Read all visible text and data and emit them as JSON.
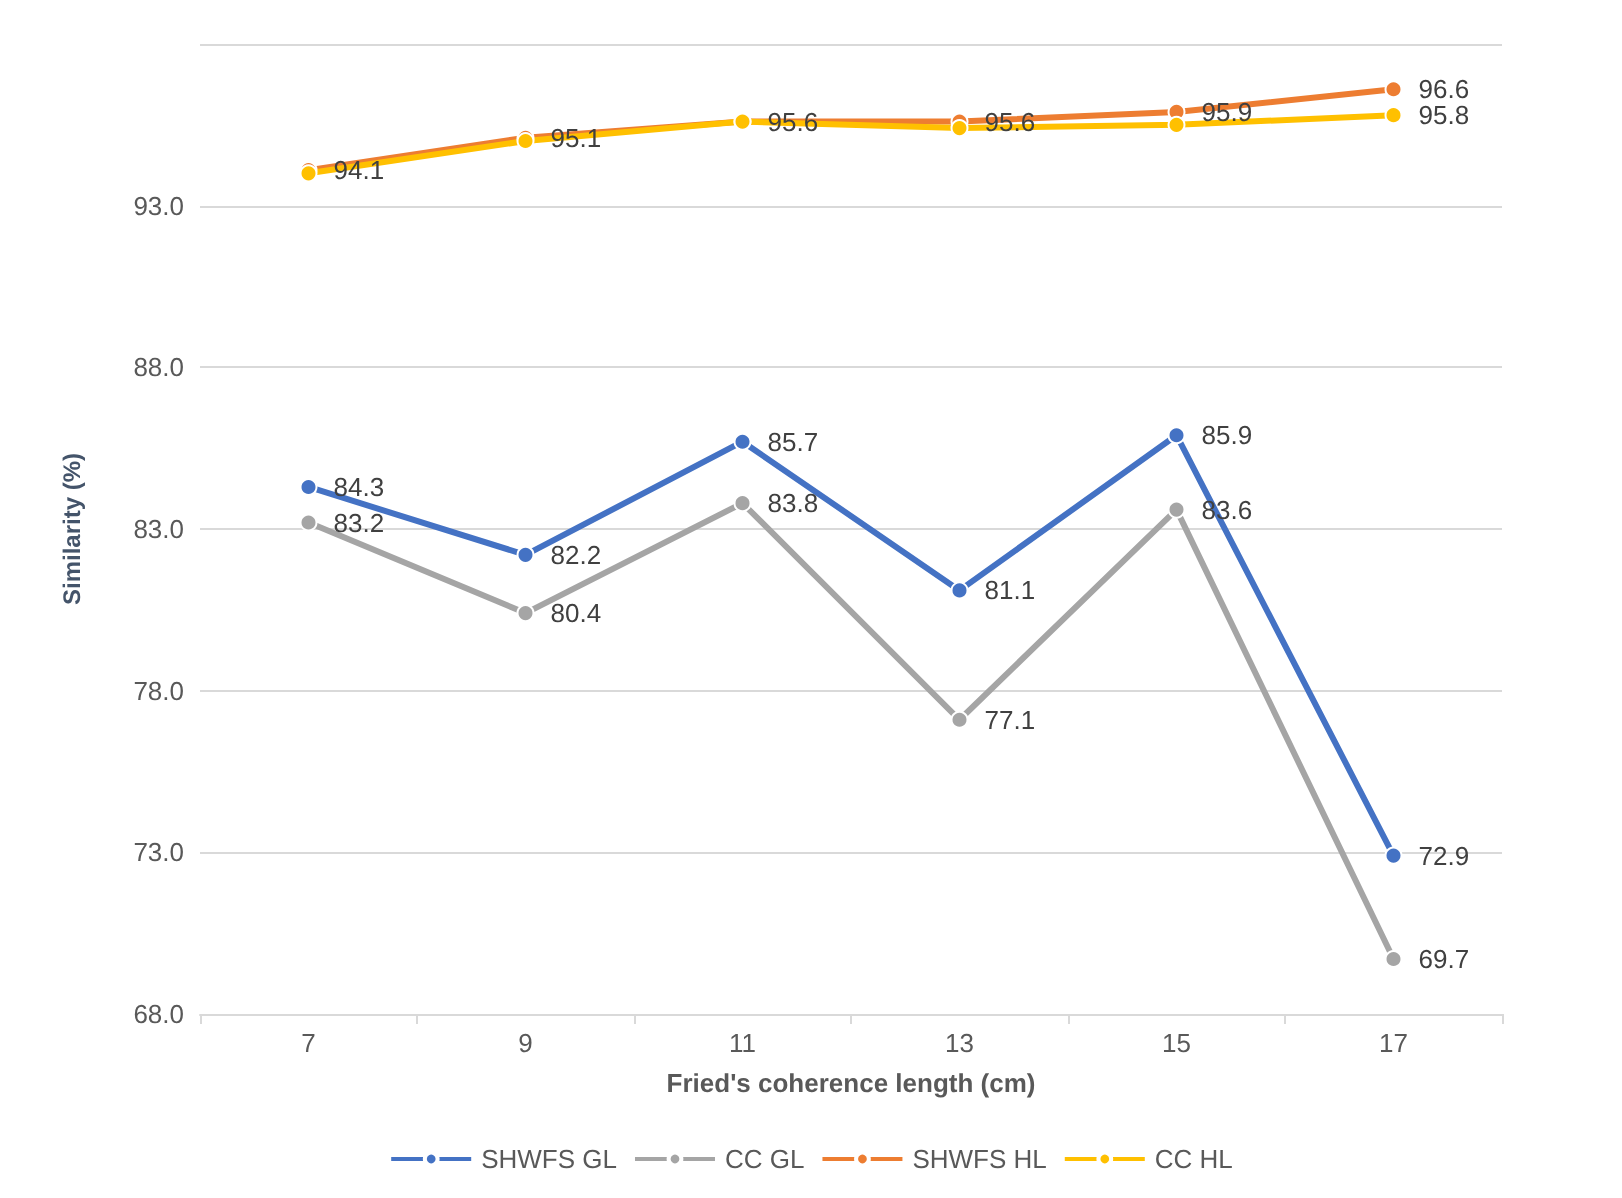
{
  "chart_data": {
    "type": "line",
    "xlabel": "Fried's coherence length (cm)",
    "ylabel": "Similarity (%)",
    "categories": [
      "7",
      "9",
      "11",
      "13",
      "15",
      "17"
    ],
    "series": [
      {
        "name": "SHWFS GL",
        "color": "#4472c4",
        "values": [
          84.3,
          82.2,
          85.7,
          81.1,
          85.9,
          72.9
        ],
        "value_labels": [
          "84.3",
          "82.2",
          "85.7",
          "81.1",
          "85.9",
          "72.9"
        ]
      },
      {
        "name": "CC GL",
        "color": "#a5a5a5",
        "values": [
          83.2,
          80.4,
          83.8,
          77.1,
          83.6,
          69.7
        ],
        "value_labels": [
          "83.2",
          "80.4",
          "83.8",
          "77.1",
          "83.6",
          "69.7"
        ]
      },
      {
        "name": "SHWFS HL",
        "color": "#ed7d31",
        "values": [
          94.1,
          95.1,
          95.6,
          95.6,
          95.9,
          96.6
        ],
        "value_labels": [
          "94.1",
          "95.1",
          "95.6",
          "95.6",
          "95.9",
          "96.6"
        ]
      },
      {
        "name": "CC HL",
        "color": "#ffc000",
        "values": [
          94.0,
          95.0,
          95.6,
          95.4,
          95.5,
          95.8
        ],
        "value_labels": [
          null,
          null,
          null,
          null,
          null,
          "95.8"
        ]
      }
    ],
    "ylim": [
      68,
      98
    ],
    "yticks": [
      {
        "value": 68,
        "label": "68.0"
      },
      {
        "value": 73,
        "label": "73.0"
      },
      {
        "value": 78,
        "label": "78.0"
      },
      {
        "value": 83,
        "label": "83.0"
      },
      {
        "value": 88,
        "label": "88.0"
      },
      {
        "value": 93,
        "label": "93.0"
      },
      {
        "value": 98,
        "label": null
      }
    ],
    "grid": "y",
    "legend": "bottom",
    "marker": "circle",
    "line_style": "solid"
  }
}
